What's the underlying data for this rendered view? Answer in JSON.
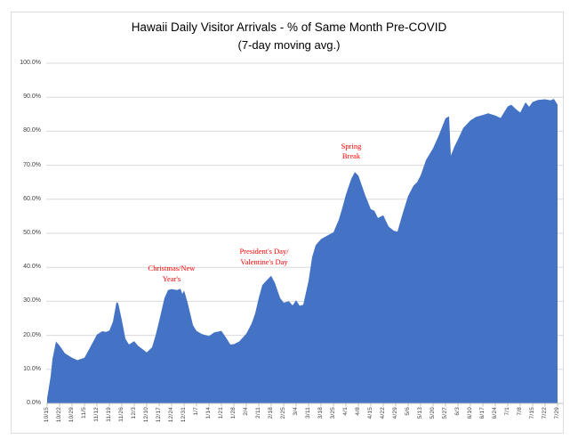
{
  "chart_data": {
    "type": "area",
    "title": "Hawaii Daily Visitor Arrivals - % of Same Month Pre-COVID",
    "subtitle": "(7-day moving avg.)",
    "ylabel": "",
    "xlabel": "",
    "ylim": [
      0,
      100
    ],
    "grid": "horizontal",
    "legend": "none",
    "x_unit": "days since 10/15",
    "x_days_total": 287,
    "x_tick_labels": [
      "10/15",
      "10/22",
      "10/29",
      "11/5",
      "11/12",
      "11/19",
      "11/26",
      "12/3",
      "12/10",
      "12/17",
      "12/24",
      "12/31",
      "1/7",
      "1/14",
      "1/21",
      "1/28",
      "2/4",
      "2/11",
      "2/18",
      "2/25",
      "3/4",
      "3/11",
      "3/18",
      "3/25",
      "4/1",
      "4/8",
      "4/15",
      "4/22",
      "4/29",
      "5/6",
      "5/13",
      "5/20",
      "5/27",
      "6/3",
      "6/10",
      "6/17",
      "6/24",
      "7/1",
      "7/8",
      "7/15",
      "7/22",
      "7/29"
    ],
    "y_tick_labels": [
      "100.0%",
      "90.0%",
      "80.0%",
      "70.0%",
      "60.0%",
      "50.0%",
      "40.0%",
      "30.0%",
      "20.0%",
      "10.0%",
      "0.0%"
    ],
    "series": [
      {
        "name": "% of same month pre-COVID arrivals (7-day moving avg.)",
        "points_format": "[day_offset_from_10/15, percent_value]",
        "points": [
          [
            0,
            1.5
          ],
          [
            2,
            8
          ],
          [
            3,
            13
          ],
          [
            5,
            18.2
          ],
          [
            7,
            17
          ],
          [
            10,
            14.7
          ],
          [
            14,
            13.4
          ],
          [
            17,
            12.7
          ],
          [
            21,
            13.4
          ],
          [
            24,
            16.3
          ],
          [
            28,
            20.2
          ],
          [
            31,
            21.2
          ],
          [
            33,
            21
          ],
          [
            35,
            21.4
          ],
          [
            37,
            24
          ],
          [
            39,
            29.8
          ],
          [
            40,
            29.4
          ],
          [
            42,
            24.5
          ],
          [
            44,
            19
          ],
          [
            46,
            17.3
          ],
          [
            49,
            18.3
          ],
          [
            51,
            17
          ],
          [
            53,
            16.2
          ],
          [
            56,
            15
          ],
          [
            59,
            16.5
          ],
          [
            61,
            20
          ],
          [
            63,
            24.3
          ],
          [
            66,
            31
          ],
          [
            68,
            33.3
          ],
          [
            70,
            33.6
          ],
          [
            73,
            33.3
          ],
          [
            75,
            33.7
          ],
          [
            76,
            32.2
          ],
          [
            77,
            33.2
          ],
          [
            79,
            29.6
          ],
          [
            82,
            23
          ],
          [
            84,
            21.3
          ],
          [
            87,
            20.4
          ],
          [
            91,
            19.8
          ],
          [
            94,
            20.9
          ],
          [
            98,
            21.3
          ],
          [
            101,
            19
          ],
          [
            103,
            17.3
          ],
          [
            105,
            17.4
          ],
          [
            108,
            18.2
          ],
          [
            112,
            20.5
          ],
          [
            115,
            23.5
          ],
          [
            117,
            26.5
          ],
          [
            119,
            31
          ],
          [
            121,
            34.8
          ],
          [
            124,
            36.5
          ],
          [
            126,
            37.5
          ],
          [
            128,
            35.5
          ],
          [
            131,
            31
          ],
          [
            133,
            29.6
          ],
          [
            136,
            30
          ],
          [
            138,
            28.8
          ],
          [
            140,
            30.3
          ],
          [
            142,
            28.7
          ],
          [
            144,
            29
          ],
          [
            147,
            36
          ],
          [
            149,
            43
          ],
          [
            151,
            46.5
          ],
          [
            154,
            48.3
          ],
          [
            157,
            49.2
          ],
          [
            161,
            50.3
          ],
          [
            164,
            54
          ],
          [
            166,
            57.5
          ],
          [
            168,
            61.4
          ],
          [
            171,
            66
          ],
          [
            173,
            68
          ],
          [
            175,
            67
          ],
          [
            177,
            64
          ],
          [
            179,
            61
          ],
          [
            182,
            57.1
          ],
          [
            184,
            56.6
          ],
          [
            186,
            54.5
          ],
          [
            189,
            55.3
          ],
          [
            192,
            52
          ],
          [
            195,
            50.7
          ],
          [
            197,
            50.5
          ],
          [
            200,
            56
          ],
          [
            203,
            61
          ],
          [
            206,
            64
          ],
          [
            208,
            65
          ],
          [
            210,
            67
          ],
          [
            213,
            71.5
          ],
          [
            217,
            75
          ],
          [
            220,
            78.5
          ],
          [
            224,
            83.8
          ],
          [
            226,
            84.4
          ],
          [
            227,
            72.8
          ],
          [
            229,
            75.5
          ],
          [
            231,
            77.6
          ],
          [
            234,
            81
          ],
          [
            238,
            83.2
          ],
          [
            241,
            84.2
          ],
          [
            245,
            84.8
          ],
          [
            248,
            85.3
          ],
          [
            252,
            84.6
          ],
          [
            255,
            83.9
          ],
          [
            259,
            87.3
          ],
          [
            261,
            87.8
          ],
          [
            264,
            86.3
          ],
          [
            266,
            85.5
          ],
          [
            269,
            88.5
          ],
          [
            271,
            87.2
          ],
          [
            273,
            88.6
          ],
          [
            276,
            89.2
          ],
          [
            280,
            89.4
          ],
          [
            283,
            89.1
          ],
          [
            285,
            89.5
          ],
          [
            287,
            87.8
          ]
        ]
      }
    ],
    "annotations": [
      {
        "lines": [
          "Christmas/New",
          "Year's"
        ],
        "day": 70,
        "value_top": 41
      },
      {
        "lines": [
          "President's Day/",
          "Valentine's Day"
        ],
        "day": 122,
        "value_top": 46
      },
      {
        "lines": [
          "Spring",
          "Break"
        ],
        "day": 171,
        "value_top": 77
      }
    ],
    "colors": {
      "area_fill": "#4472C4",
      "gridline": "#D9D9D9",
      "axis_line": "#BFBFBF",
      "tick_label": "#404040",
      "title_text": "#000000",
      "annotation_text": "#FF0000",
      "chart_border": "#DCDCDC"
    }
  }
}
